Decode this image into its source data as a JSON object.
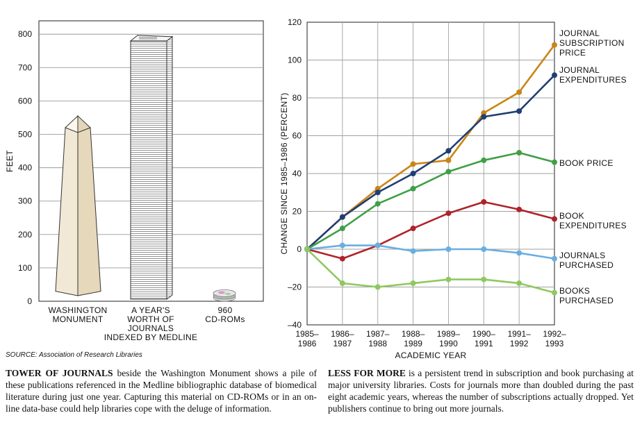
{
  "chart_data": [
    {
      "type": "bar",
      "title": "",
      "ylabel": "FEET",
      "xlabel": "",
      "ylim": [
        0,
        840
      ],
      "yticks": [
        "0",
        "100",
        "200",
        "300",
        "400",
        "500",
        "600",
        "700",
        "800"
      ],
      "categories": [
        [
          "WASHINGTON",
          "MONUMENT"
        ],
        [
          "A YEAR'S",
          "WORTH OF",
          "JOURNALS",
          "INDEXED BY MEDLINE"
        ],
        [
          "960",
          "CD-ROMs"
        ]
      ],
      "values": [
        555,
        780,
        22
      ],
      "colors": [
        "#f1e8d6",
        "#ffffff",
        "#c9c9c9"
      ]
    },
    {
      "type": "line",
      "ylabel": "CHANGE SINCE 1985–1986 (PERCENT)",
      "xlabel": "ACADEMIC YEAR",
      "ylim": [
        -40,
        120
      ],
      "yticks": [
        "–40",
        "–20",
        "0",
        "20",
        "40",
        "60",
        "80",
        "100",
        "120"
      ],
      "x": [
        [
          "1985–",
          "1986"
        ],
        [
          "1986–",
          "1987"
        ],
        [
          "1987–",
          "1988"
        ],
        [
          "1988–",
          "1989"
        ],
        [
          "1989–",
          "1990"
        ],
        [
          "1990–",
          "1991"
        ],
        [
          "1991–",
          "1992"
        ],
        [
          "1992–",
          "1993"
        ]
      ],
      "series": [
        {
          "name": [
            "JOURNAL",
            "SUBSCRIPTION",
            "PRICE"
          ],
          "color": "#c98516",
          "values": [
            0,
            17,
            32,
            45,
            47,
            72,
            83,
            108
          ]
        },
        {
          "name": [
            "JOURNAL",
            "EXPENDITURES"
          ],
          "color": "#1f3e73",
          "values": [
            0,
            17,
            30,
            40,
            52,
            70,
            73,
            92
          ]
        },
        {
          "name": [
            "BOOK PRICE"
          ],
          "color": "#3f9f46",
          "values": [
            0,
            11,
            24,
            32,
            41,
            47,
            51,
            46
          ]
        },
        {
          "name": [
            "BOOK",
            "EXPENDITURES"
          ],
          "color": "#b0232a",
          "values": [
            0,
            -5,
            2,
            11,
            19,
            25,
            21,
            16
          ]
        },
        {
          "name": [
            "JOURNALS",
            "PURCHASED"
          ],
          "color": "#6aaee0",
          "values": [
            0,
            2,
            2,
            -1,
            0,
            0,
            -2,
            -5
          ]
        },
        {
          "name": [
            "BOOKS",
            "PURCHASED"
          ],
          "color": "#8fc860",
          "values": [
            0,
            -18,
            -20,
            -18,
            -16,
            -16,
            -18,
            -23
          ]
        }
      ]
    }
  ],
  "source": "SOURCE: Association of Research Libraries",
  "captions": {
    "left_lead": "TOWER OF JOURNALS",
    "left_body": " beside the Washington Monument shows a pile of these publications referenced in the Medline bibliographic database of biomedical literature during just one year. Capturing this material on CD-ROMs or in an on-line data-base could help libraries cope with the deluge of information.",
    "right_lead": "LESS FOR MORE",
    "right_body": " is a persistent trend in subscription and book purchasing at major university libraries. Costs for journals more than doubled during the past eight academic years, whereas the number of subscriptions actually dropped. Yet publishers continue to bring out more journals."
  }
}
